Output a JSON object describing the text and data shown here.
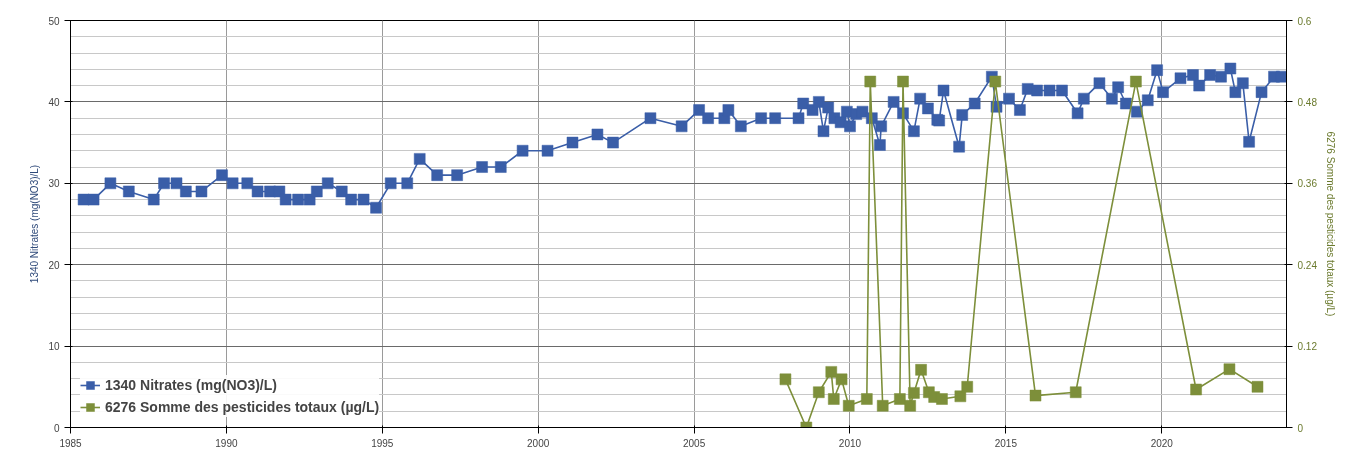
{
  "chart_data": {
    "type": "line",
    "ylabel": "1340 Nitrates (mg(NO3)/L)",
    "y2label": "6276 Somme des pesticides totaux (µg/L)",
    "xlim": [
      1985,
      2024
    ],
    "xticks": [
      1985,
      1990,
      1995,
      2000,
      2005,
      2010,
      2015,
      2020
    ],
    "ylim": [
      0,
      50
    ],
    "yticks": [
      0,
      10,
      20,
      30,
      40,
      50
    ],
    "y2lim": [
      0,
      0.6
    ],
    "y2ticks": [
      0,
      0.12,
      0.24,
      0.36,
      0.48,
      0.6
    ],
    "grid": true,
    "legend": "bottom left",
    "marker": "square",
    "line_style": "solid",
    "series": [
      {
        "name": "1340 Nitrates (mg(NO3)/L)",
        "color": "#3a5ea8",
        "x": [
          1985.42,
          1985.74,
          1986.28,
          1986.87,
          1987.67,
          1988.0,
          1988.4,
          1988.7,
          1989.2,
          1989.86,
          1990.2,
          1990.67,
          1991.0,
          1991.4,
          1991.7,
          1991.9,
          1992.3,
          1992.67,
          1992.9,
          1993.25,
          1993.7,
          1994.0,
          1994.4,
          1994.8,
          1995.27,
          1995.8,
          1996.2,
          1996.76,
          1997.4,
          1998.2,
          1998.8,
          1999.5,
          2000.3,
          2001.1,
          2001.9,
          2002.4,
          2003.6,
          2004.6,
          2005.16,
          2005.45,
          2005.97,
          2006.1,
          2006.5,
          2007.15,
          2007.6,
          2008.35,
          2008.5,
          2008.8,
          2009.0,
          2009.15,
          2009.3,
          2009.5,
          2009.7,
          2009.9,
          2010.0,
          2010.2,
          2010.4,
          2010.7,
          2010.96,
          2011.0,
          2011.4,
          2011.7,
          2012.05,
          2012.25,
          2012.5,
          2012.8,
          2012.86,
          2013.0,
          2013.5,
          2013.6,
          2014.0,
          2014.55,
          2014.7,
          2015.1,
          2015.45,
          2015.7,
          2016.0,
          2016.4,
          2016.8,
          2017.3,
          2017.5,
          2018.0,
          2018.4,
          2018.6,
          2018.85,
          2019.2,
          2019.55,
          2019.85,
          2020.04,
          2020.6,
          2021.0,
          2021.2,
          2021.55,
          2021.9,
          2022.2,
          2022.36,
          2022.6,
          2022.8,
          2023.2,
          2023.6,
          2023.85
        ],
        "values": [
          28,
          28,
          30,
          29,
          28,
          30,
          30,
          29,
          29,
          31,
          30,
          30,
          29,
          29,
          29,
          28,
          28,
          28,
          29,
          30,
          29,
          28,
          28,
          27,
          30,
          30,
          33,
          31,
          31,
          32,
          32,
          34,
          34,
          35,
          36,
          35,
          38,
          37,
          39,
          38,
          38,
          39,
          37,
          38,
          38,
          38,
          39.8,
          39,
          40,
          36.4,
          39.3,
          38,
          37.5,
          38.8,
          37,
          38.5,
          38.8,
          38,
          34.7,
          37,
          40,
          38.6,
          36.4,
          40.4,
          39.2,
          37.8,
          37.7,
          41.4,
          34.5,
          38.4,
          39.8,
          43.1,
          39.4,
          40.4,
          39,
          41.6,
          41.4,
          41.4,
          41.4,
          38.6,
          40.4,
          42.3,
          40.4,
          41.8,
          39.8,
          38.8,
          40.2,
          43.9,
          41.2,
          42.9,
          43.3,
          42,
          43.3,
          43.1,
          44.1,
          41.2,
          42.3,
          35.1,
          41.2,
          43.1,
          43.1
        ]
      },
      {
        "name": "6276 Somme des pesticides totaux (µg/L)",
        "color": "#7d8f3a",
        "axis": "y2",
        "x": [
          2007.93,
          2008.6,
          2009.0,
          2009.4,
          2009.48,
          2009.73,
          2009.96,
          2010.54,
          2010.65,
          2011.05,
          2011.6,
          2011.7,
          2011.93,
          2012.05,
          2012.28,
          2012.53,
          2012.7,
          2012.95,
          2013.54,
          2013.76,
          2014.66,
          2015.95,
          2017.24,
          2019.17,
          2021.1,
          2022.17,
          2023.07
        ],
        "values": [
          0.071,
          0,
          0.052,
          0.082,
          0.042,
          0.071,
          0.032,
          0.042,
          0.51,
          0.032,
          0.042,
          0.51,
          0.032,
          0.051,
          0.085,
          0.052,
          0.045,
          0.042,
          0.046,
          0.06,
          0.51,
          0.047,
          0.052,
          0.51,
          0.056,
          0.086,
          0.06
        ]
      }
    ]
  }
}
